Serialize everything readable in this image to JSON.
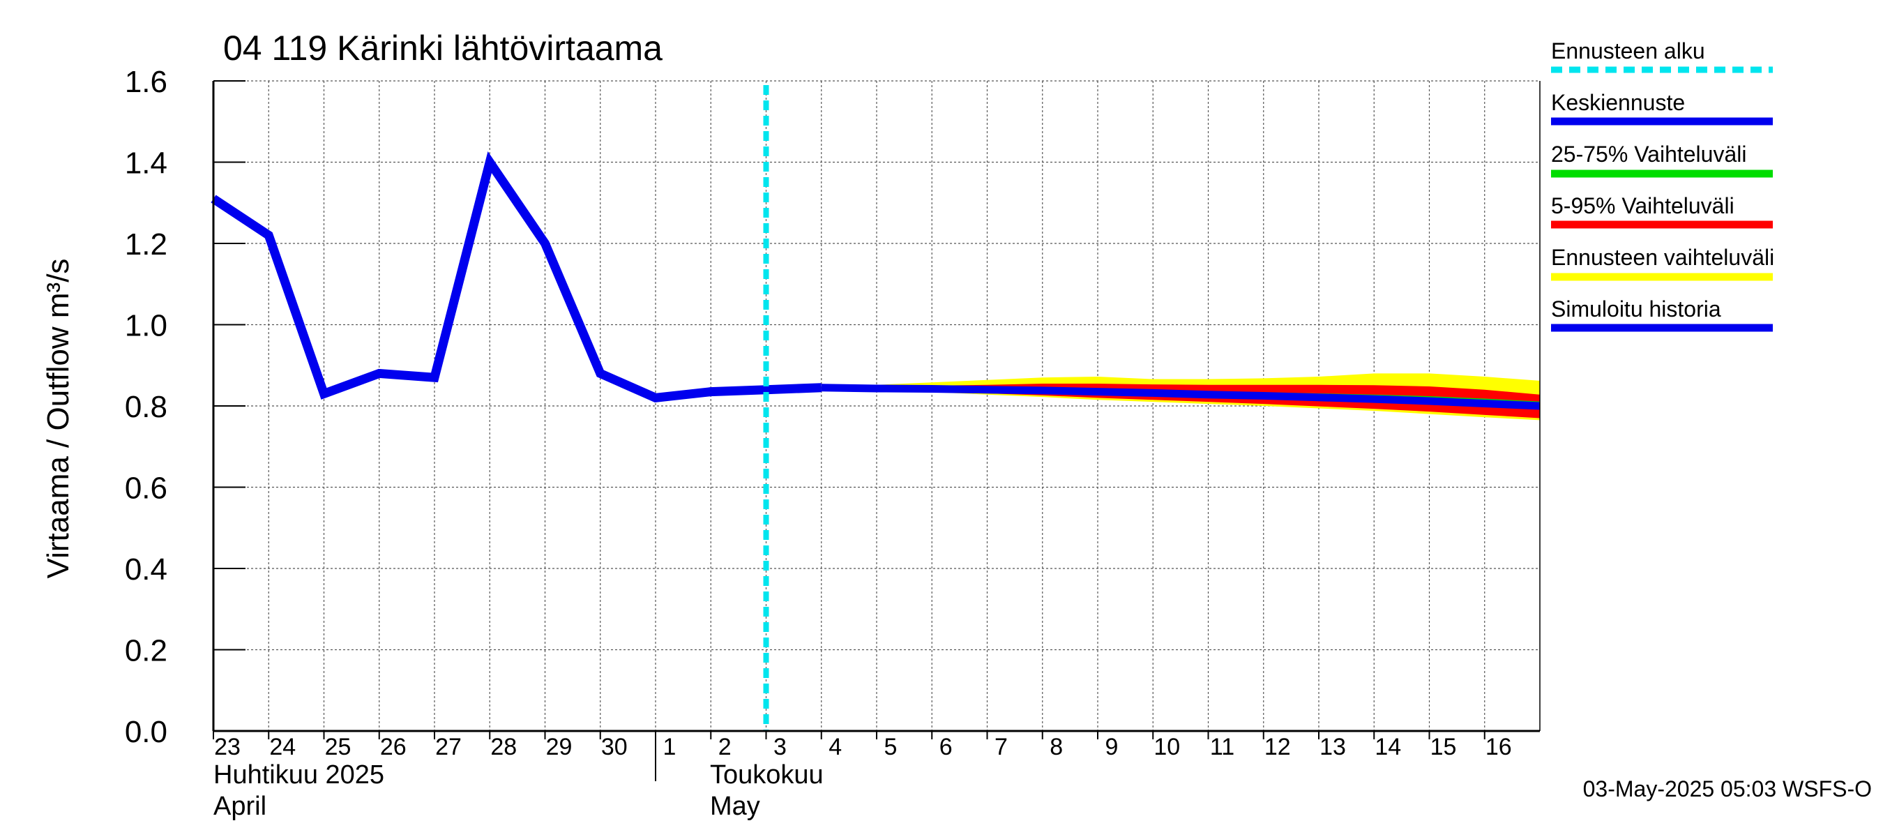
{
  "chart_data": {
    "type": "line",
    "title": "04 119 Kärinki lähtövirtaama",
    "ylabel": "Virtaama / Outflow    m³/s",
    "ylim": [
      0.0,
      1.6
    ],
    "y_ticks": [
      "0.0",
      "0.2",
      "0.4",
      "0.6",
      "0.8",
      "1.0",
      "1.2",
      "1.4",
      "1.6"
    ],
    "x_tick_labels": [
      "23",
      "24",
      "25",
      "26",
      "27",
      "28",
      "29",
      "30",
      "1",
      "2",
      "3",
      "4",
      "5",
      "6",
      "7",
      "8",
      "9",
      "10",
      "11",
      "12",
      "13",
      "14",
      "15",
      "16"
    ],
    "x_range_days": [
      0,
      24
    ],
    "month_labels": {
      "april_fi": "Huhtikuu  2025",
      "april_en": "April",
      "may_fi": "Toukokuu",
      "may_en": "May"
    },
    "forecast_start_day": 10.0,
    "series": [
      {
        "name": "Simuloitu historia",
        "color": "#0000ee",
        "x": [
          0,
          1,
          2,
          3,
          4,
          5,
          6,
          7,
          8,
          9,
          10,
          11
        ],
        "y": [
          1.31,
          1.22,
          0.83,
          0.88,
          0.87,
          1.4,
          1.2,
          0.88,
          0.82,
          0.835,
          0.84,
          0.845
        ]
      },
      {
        "name": "Keskiennuste",
        "color": "#0000ee",
        "x": [
          11,
          12,
          13,
          14,
          15,
          16,
          17,
          18,
          19,
          20,
          21,
          22,
          23,
          24
        ],
        "y": [
          0.845,
          0.843,
          0.842,
          0.84,
          0.838,
          0.835,
          0.832,
          0.828,
          0.825,
          0.821,
          0.817,
          0.812,
          0.806,
          0.8
        ]
      }
    ],
    "bands": [
      {
        "name": "Ennusteen vaihteluväli",
        "color": "#ffff00",
        "x": [
          11,
          12,
          13,
          14,
          15,
          16,
          17,
          18,
          19,
          20,
          21,
          22,
          23,
          24
        ],
        "low": [
          0.845,
          0.838,
          0.834,
          0.828,
          0.822,
          0.815,
          0.81,
          0.805,
          0.8,
          0.794,
          0.788,
          0.78,
          0.772,
          0.765
        ],
        "high": [
          0.848,
          0.852,
          0.858,
          0.864,
          0.87,
          0.872,
          0.866,
          0.866,
          0.868,
          0.872,
          0.88,
          0.88,
          0.872,
          0.862
        ]
      },
      {
        "name": "5-95% Vaihteluväli",
        "color": "#ff0000",
        "x": [
          11,
          12,
          13,
          14,
          15,
          16,
          17,
          18,
          19,
          20,
          21,
          22,
          23,
          24
        ],
        "low": [
          0.845,
          0.84,
          0.836,
          0.831,
          0.826,
          0.82,
          0.815,
          0.81,
          0.805,
          0.799,
          0.793,
          0.786,
          0.778,
          0.77
        ],
        "high": [
          0.846,
          0.848,
          0.85,
          0.852,
          0.855,
          0.855,
          0.853,
          0.852,
          0.852,
          0.852,
          0.851,
          0.848,
          0.84,
          0.828
        ]
      },
      {
        "name": "25-75% Vaihteluväli",
        "color": "#00dd00",
        "x": [
          11,
          12,
          13,
          14,
          15,
          16,
          17,
          18,
          19,
          20,
          21,
          22,
          23,
          24
        ],
        "low": [
          0.845,
          0.842,
          0.84,
          0.837,
          0.834,
          0.83,
          0.826,
          0.822,
          0.818,
          0.813,
          0.808,
          0.803,
          0.797,
          0.791
        ],
        "high": [
          0.845,
          0.845,
          0.845,
          0.844,
          0.843,
          0.841,
          0.839,
          0.836,
          0.834,
          0.831,
          0.828,
          0.824,
          0.818,
          0.811
        ]
      }
    ],
    "legend": [
      {
        "label": "Ennusteen alku",
        "color": "#00e5ee",
        "style": "dashed"
      },
      {
        "label": "Keskiennuste",
        "color": "#0000ee",
        "style": "solid"
      },
      {
        "label": "25-75% Vaihteluväli",
        "color": "#00dd00",
        "style": "solid"
      },
      {
        "label": "5-95% Vaihteluväli",
        "color": "#ff0000",
        "style": "solid"
      },
      {
        "label": "Ennusteen vaihteluväli",
        "color": "#ffff00",
        "style": "solid"
      },
      {
        "label": "Simuloitu historia",
        "color": "#0000ee",
        "style": "solid"
      }
    ],
    "footer": "03-May-2025 05:03 WSFS-O",
    "forecast_start_color": "#00e5ee"
  }
}
